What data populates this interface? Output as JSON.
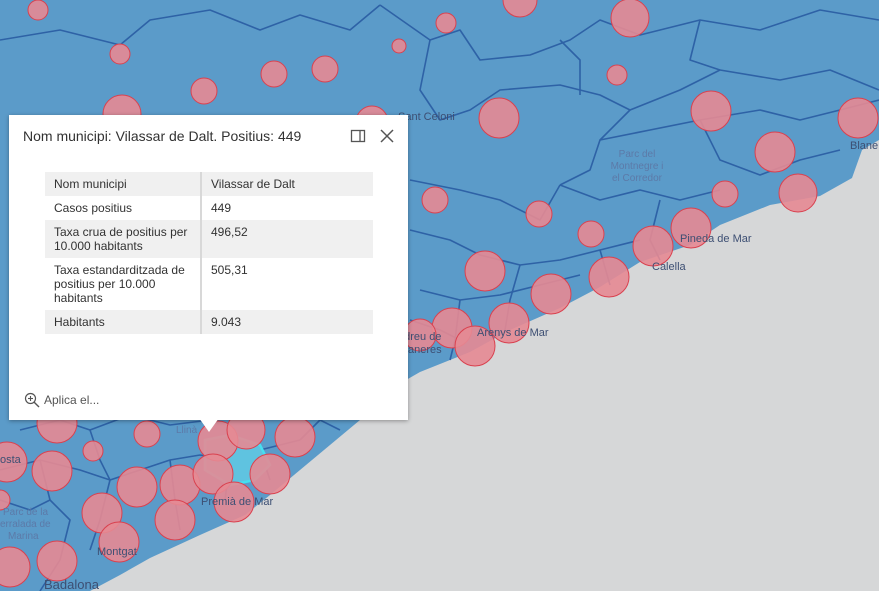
{
  "map": {
    "labels": {
      "sant_celoni": "Sant Celoni",
      "parc_montnegre": [
        "Parc del",
        "Montnegre i",
        "el Corredor"
      ],
      "blanes": "Blane",
      "pineda": "Pineda de Mar",
      "calella": "Calella",
      "arenys": "Arenys de Mar",
      "caldes": [
        "ndreu de",
        "aneres"
      ],
      "premia": "Premià de Mar",
      "montgat": "Montgat",
      "badalona": "Badalona",
      "costa": "osta",
      "parc_serralada": [
        "Parc de la",
        "erralada de",
        "Marina"
      ],
      "lliça": "Llinà"
    },
    "colors": {
      "polygon": "#5b9bc9",
      "sea": "#d6d7d8",
      "border": "#2e62a6",
      "circle_fill": "#e58a94",
      "circle_stroke": "#d9414f",
      "selected": "#46c6e8"
    }
  },
  "popup": {
    "title": "Nom municipi: Vilassar de Dalt. Positius: 449",
    "rows": [
      {
        "field": "Nom municipi",
        "value": "Vilassar de Dalt"
      },
      {
        "field": "Casos positius",
        "value": "449"
      },
      {
        "field": "Taxa crua de positius per 10.000 habitants",
        "value": "496,52"
      },
      {
        "field": "Taxa estandarditzada de positius per 10.000 habitants",
        "value": "505,31"
      },
      {
        "field": "Habitants",
        "value": "9.043"
      }
    ],
    "zoom_label": "Aplica el..."
  }
}
